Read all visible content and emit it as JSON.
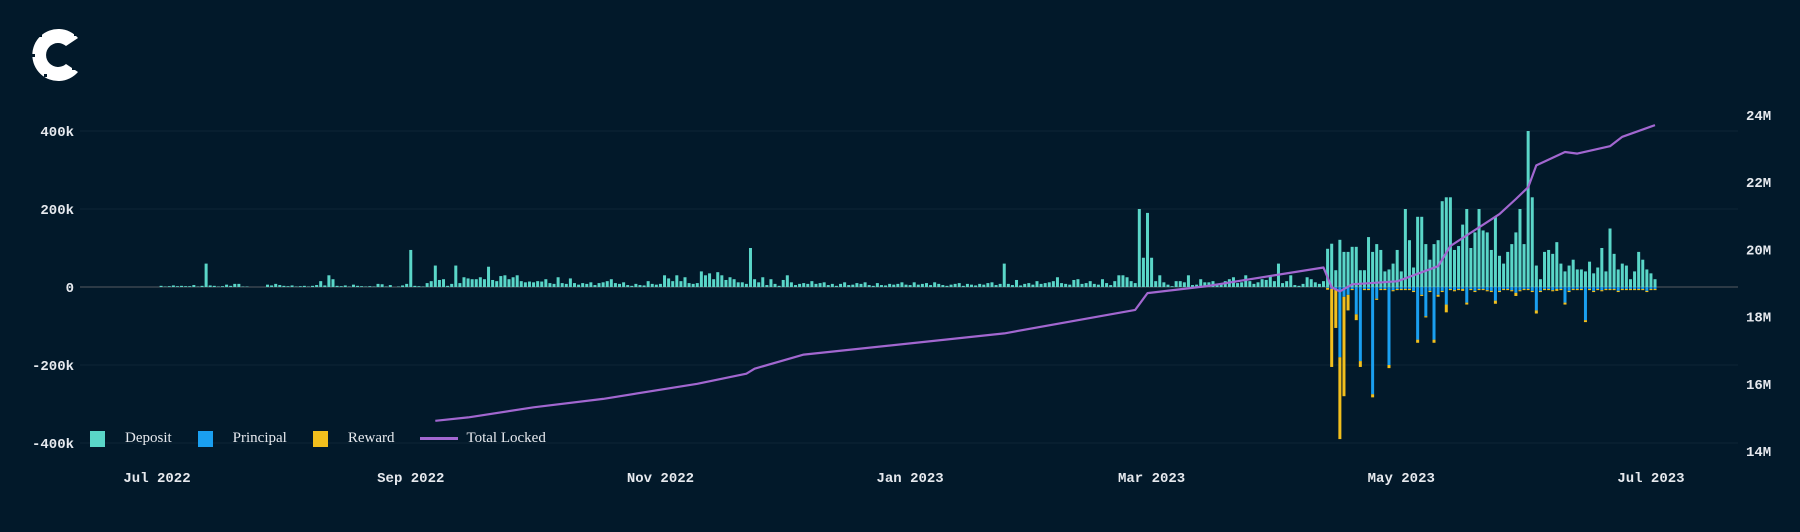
{
  "colors": {
    "background": "#02192a",
    "deposit": "#5ad6c8",
    "principal": "#1a9ff0",
    "reward": "#f2bf1d",
    "total_locked": "#a267d0",
    "logo": "#ffffff"
  },
  "logo": {
    "name": "C",
    "icon": "stylized-c-logo"
  },
  "legend": [
    {
      "label": "Deposit",
      "key": "deposit"
    },
    {
      "label": "Principal",
      "key": "principal"
    },
    {
      "label": "Reward",
      "key": "reward"
    },
    {
      "label": "Total Locked",
      "key": "total_locked"
    }
  ],
  "chart_data": {
    "type": "bar",
    "title": "",
    "xlabel": "",
    "ylabel": "",
    "grid": true,
    "legend_position": "bottom-left",
    "x_ticks": [
      {
        "label": "Jul 2022",
        "date": "2022-07-01"
      },
      {
        "label": "Sep 2022",
        "date": "2022-09-01"
      },
      {
        "label": "Nov 2022",
        "date": "2022-11-01"
      },
      {
        "label": "Jan 2023",
        "date": "2023-01-01"
      },
      {
        "label": "Mar 2023",
        "date": "2023-03-01"
      },
      {
        "label": "May 2023",
        "date": "2023-05-01"
      },
      {
        "label": "Jul 2023",
        "date": "2023-07-01"
      }
    ],
    "y_left": {
      "unit": "k",
      "range": [
        -400,
        400
      ],
      "ticks": [
        {
          "value": 400,
          "label": "400k"
        },
        {
          "value": 200,
          "label": "200k"
        },
        {
          "value": 0,
          "label": "0"
        },
        {
          "value": -200,
          "label": "-200k"
        },
        {
          "value": -400,
          "label": "-400k"
        }
      ]
    },
    "y_right": {
      "unit": "M",
      "range": [
        14,
        24
      ],
      "ticks": [
        {
          "value": 24,
          "label": "24M"
        },
        {
          "value": 22,
          "label": "22M"
        },
        {
          "value": 20,
          "label": "20M"
        },
        {
          "value": 18,
          "label": "18M"
        },
        {
          "value": 16,
          "label": "16M"
        },
        {
          "value": 14,
          "label": "14M"
        }
      ]
    },
    "first_date": "2022-07-02",
    "deposit": [
      3,
      1,
      2,
      4,
      2,
      3,
      2,
      2,
      5,
      1,
      3,
      60,
      4,
      3,
      1,
      2,
      6,
      3,
      8,
      8,
      1,
      1,
      0,
      0,
      0,
      0,
      6,
      4,
      8,
      5,
      3,
      2,
      4,
      1,
      2,
      3,
      1,
      3,
      5,
      15,
      4,
      30,
      20,
      3,
      2,
      4,
      1,
      6,
      3,
      2,
      1,
      2,
      1,
      8,
      7,
      1,
      5,
      0,
      1,
      4,
      8,
      95,
      3,
      2,
      1,
      10,
      15,
      55,
      18,
      20,
      3,
      8,
      55,
      10,
      25,
      22,
      20,
      20,
      25,
      20,
      52,
      18,
      15,
      28,
      30,
      20,
      25,
      30,
      15,
      12,
      14,
      12,
      15,
      14,
      20,
      10,
      8,
      25,
      10,
      8,
      22,
      10,
      6,
      10,
      8,
      12,
      5,
      10,
      12,
      15,
      20,
      10,
      8,
      12,
      5,
      3,
      8,
      5,
      4,
      15,
      8,
      6,
      8,
      30,
      22,
      15,
      30,
      15,
      25,
      10,
      8,
      10,
      40,
      30,
      35,
      20,
      38,
      30,
      18,
      25,
      20,
      12,
      12,
      8,
      100,
      20,
      12,
      25,
      5,
      20,
      8,
      3,
      18,
      30,
      12,
      5,
      8,
      10,
      8,
      15,
      8,
      10,
      12,
      5,
      8,
      3,
      8,
      12,
      5,
      6,
      10,
      8,
      12,
      5,
      3,
      10,
      5,
      4,
      8,
      6,
      8,
      12,
      6,
      5,
      12,
      6,
      8,
      10,
      5,
      12,
      8,
      5,
      3,
      6,
      8,
      10,
      3,
      8,
      6,
      4,
      8,
      6,
      10,
      12,
      5,
      8,
      60,
      8,
      5,
      18,
      4,
      8,
      10,
      6,
      15,
      8,
      10,
      12,
      15,
      25,
      10,
      8,
      6,
      18,
      20,
      8,
      10,
      15,
      8,
      6,
      20,
      10,
      5,
      15,
      30,
      30,
      25,
      15,
      10,
      200,
      75,
      190,
      75,
      15,
      30,
      12,
      6,
      2,
      15,
      15,
      12,
      30,
      5,
      6,
      20,
      12,
      12,
      15,
      8,
      10,
      15,
      20,
      25,
      10,
      12,
      30,
      15,
      8,
      12,
      20,
      18,
      30,
      15,
      60,
      10,
      15,
      30,
      5,
      3,
      8,
      25,
      20,
      12,
      8,
      15,
      98,
      111,
      43,
      121,
      90,
      90,
      103,
      103,
      43,
      43,
      128,
      90,
      110,
      95,
      40,
      45,
      60,
      95,
      40,
      200,
      120,
      50,
      180,
      180,
      110,
      70,
      110,
      120,
      220,
      230,
      230,
      95,
      105,
      160,
      200,
      100,
      140,
      200,
      145,
      140,
      95,
      180,
      80,
      60,
      90,
      110,
      140,
      200,
      110,
      400,
      230,
      55,
      20,
      90,
      95,
      85,
      115,
      60,
      40,
      55,
      70,
      45,
      45,
      40,
      65,
      35,
      50,
      100,
      40,
      150,
      85,
      45,
      60,
      55,
      20,
      40,
      90,
      70,
      45,
      35,
      20
    ],
    "outflow_first_date": "2023-04-13",
    "principal": [
      2,
      5,
      5,
      180,
      25,
      20,
      5,
      70,
      190,
      5,
      5,
      275,
      30,
      5,
      5,
      200,
      8,
      5,
      5,
      5,
      5,
      10,
      135,
      20,
      75,
      10,
      135,
      20,
      10,
      45,
      5,
      8,
      5,
      5,
      40,
      5,
      10,
      5,
      5,
      8,
      10,
      35,
      10,
      5,
      5,
      8,
      15,
      8,
      5,
      5,
      10,
      60,
      10,
      5,
      5,
      8,
      5,
      5,
      40,
      10,
      5,
      5,
      5,
      85,
      5,
      10,
      5,
      8,
      5,
      5,
      5,
      10,
      5,
      5,
      5,
      5,
      5,
      5,
      10,
      5,
      5
    ],
    "reward": [
      5,
      200,
      100,
      210,
      255,
      40,
      3,
      15,
      15,
      3,
      3,
      8,
      3,
      3,
      3,
      8,
      3,
      3,
      3,
      3,
      3,
      3,
      8,
      3,
      3,
      3,
      8,
      5,
      3,
      20,
      3,
      3,
      3,
      5,
      5,
      3,
      3,
      3,
      3,
      3,
      3,
      8,
      3,
      3,
      3,
      3,
      8,
      3,
      3,
      3,
      3,
      8,
      3,
      3,
      3,
      3,
      5,
      3,
      5,
      3,
      3,
      3,
      3,
      5,
      3,
      3,
      3,
      3,
      3,
      3,
      3,
      3,
      3,
      3,
      3,
      3,
      3,
      3,
      3,
      3,
      3
    ],
    "total_locked": [
      {
        "date": "2022-09-07",
        "value": 14.9
      },
      {
        "date": "2022-09-15",
        "value": 15.0
      },
      {
        "date": "2022-10-01",
        "value": 15.3
      },
      {
        "date": "2022-10-18",
        "value": 15.55
      },
      {
        "date": "2022-11-10",
        "value": 16.0
      },
      {
        "date": "2022-11-22",
        "value": 16.3
      },
      {
        "date": "2022-11-24",
        "value": 16.45
      },
      {
        "date": "2022-12-06",
        "value": 16.87
      },
      {
        "date": "2023-01-24",
        "value": 17.5
      },
      {
        "date": "2023-02-25",
        "value": 18.2
      },
      {
        "date": "2023-02-28",
        "value": 18.7
      },
      {
        "date": "2023-03-14",
        "value": 18.9
      },
      {
        "date": "2023-04-12",
        "value": 19.46
      },
      {
        "date": "2023-04-14",
        "value": 18.87
      },
      {
        "date": "2023-04-16",
        "value": 18.75
      },
      {
        "date": "2023-04-19",
        "value": 18.96
      },
      {
        "date": "2023-04-30",
        "value": 19.05
      },
      {
        "date": "2023-05-10",
        "value": 19.5
      },
      {
        "date": "2023-05-13",
        "value": 20.1
      },
      {
        "date": "2023-05-25",
        "value": 21.05
      },
      {
        "date": "2023-05-29",
        "value": 21.5
      },
      {
        "date": "2023-06-01",
        "value": 21.85
      },
      {
        "date": "2023-06-03",
        "value": 22.5
      },
      {
        "date": "2023-06-10",
        "value": 22.9
      },
      {
        "date": "2023-06-13",
        "value": 22.85
      },
      {
        "date": "2023-06-21",
        "value": 23.07
      },
      {
        "date": "2023-06-24",
        "value": 23.35
      },
      {
        "date": "2023-07-02",
        "value": 23.7
      }
    ]
  }
}
